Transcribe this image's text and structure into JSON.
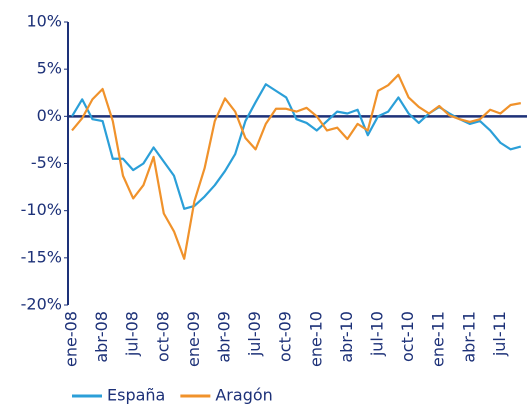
{
  "chart_data": {
    "type": "line",
    "categories": [
      "ene-08",
      null,
      null,
      "abr-08",
      null,
      null,
      "jul-08",
      null,
      null,
      "oct-08",
      null,
      null,
      "ene-09",
      null,
      null,
      "abr-09",
      null,
      null,
      "jul-09",
      null,
      null,
      "oct-09",
      null,
      null,
      "ene-10",
      null,
      null,
      "abr-10",
      null,
      null,
      "jul-10",
      null,
      null,
      "oct-10",
      null,
      null,
      "ene-11",
      null,
      null,
      "abr-11",
      null,
      null,
      "jul-11",
      null,
      null
    ],
    "series": [
      {
        "name": "España",
        "color": "#2b9fd8",
        "values": [
          0,
          1.8,
          -0.3,
          -0.5,
          -4.5,
          -4.5,
          -5.7,
          -5,
          -3.3,
          -4.8,
          -6.3,
          -9.8,
          -9.5,
          -8.5,
          -7.3,
          -5.8,
          -4,
          -0.5,
          1.5,
          3.4,
          2.7,
          2,
          -0.3,
          -0.7,
          -1.5,
          -0.5,
          0.5,
          0.3,
          0.7,
          -2,
          0,
          0.5,
          2,
          0.3,
          -0.7,
          0.3,
          1,
          0.3,
          -0.3,
          -0.8,
          -0.5,
          -1.5,
          -2.8,
          -3.5,
          -3.2
        ]
      },
      {
        "name": "Aragón",
        "color": "#f0922b",
        "values": [
          -1.5,
          -0.2,
          1.8,
          2.9,
          -0.5,
          -6.3,
          -8.7,
          -7.3,
          -4.3,
          -10.3,
          -12.2,
          -15.1,
          -9,
          -5.5,
          -0.5,
          1.9,
          0.5,
          -2.3,
          -3.5,
          -0.8,
          0.8,
          0.8,
          0.5,
          0.9,
          0,
          -1.5,
          -1.2,
          -2.4,
          -0.8,
          -1.5,
          2.7,
          3.3,
          4.4,
          2,
          1,
          0.3,
          1.1,
          0.1,
          -0.3,
          -0.6,
          -0.3,
          0.7,
          0.3,
          1.2,
          1.4
        ]
      }
    ],
    "ylim": [
      -20,
      10
    ],
    "yticks": [
      {
        "value": -20,
        "label": "-20%"
      },
      {
        "value": -15,
        "label": "-15%"
      },
      {
        "value": -10,
        "label": "-10%"
      },
      {
        "value": -5,
        "label": "-5%"
      },
      {
        "value": 0,
        "label": "0%"
      },
      {
        "value": 5,
        "label": "5%"
      },
      {
        "value": 10,
        "label": "10%"
      }
    ],
    "grid": false,
    "legend": "bottom"
  }
}
